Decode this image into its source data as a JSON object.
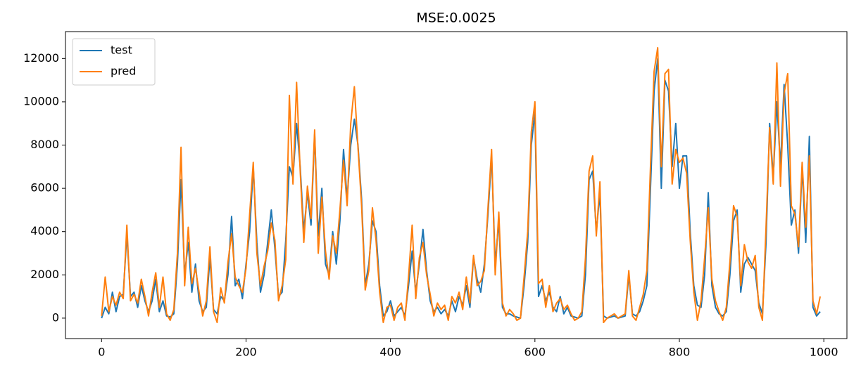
{
  "chart_data": {
    "type": "line",
    "title": "MSE:0.0025",
    "x": [
      0,
      5,
      10,
      15,
      20,
      25,
      30,
      35,
      40,
      45,
      50,
      55,
      60,
      65,
      70,
      75,
      80,
      85,
      90,
      95,
      100,
      105,
      110,
      115,
      120,
      125,
      130,
      135,
      140,
      145,
      150,
      155,
      160,
      165,
      170,
      175,
      180,
      185,
      190,
      195,
      200,
      205,
      210,
      215,
      220,
      225,
      230,
      235,
      240,
      245,
      250,
      255,
      260,
      265,
      270,
      275,
      280,
      285,
      290,
      295,
      300,
      305,
      310,
      315,
      320,
      325,
      330,
      335,
      340,
      345,
      350,
      355,
      360,
      365,
      370,
      375,
      380,
      385,
      390,
      395,
      400,
      405,
      410,
      415,
      420,
      425,
      430,
      435,
      440,
      445,
      450,
      455,
      460,
      465,
      470,
      475,
      480,
      485,
      490,
      495,
      500,
      505,
      510,
      515,
      520,
      525,
      530,
      535,
      540,
      545,
      550,
      555,
      560,
      565,
      570,
      575,
      580,
      585,
      590,
      595,
      600,
      605,
      610,
      615,
      620,
      625,
      630,
      635,
      640,
      645,
      650,
      655,
      660,
      665,
      670,
      675,
      680,
      685,
      690,
      695,
      700,
      705,
      710,
      715,
      720,
      725,
      730,
      735,
      740,
      745,
      750,
      755,
      760,
      765,
      770,
      775,
      780,
      785,
      790,
      795,
      800,
      805,
      810,
      815,
      820,
      825,
      830,
      835,
      840,
      845,
      850,
      855,
      860,
      865,
      870,
      875,
      880,
      885,
      890,
      895,
      900,
      905,
      910,
      915,
      920,
      925,
      930,
      935,
      940,
      945,
      950,
      955,
      960,
      965,
      970,
      975,
      980,
      985,
      990,
      995
    ],
    "series": [
      {
        "name": "test",
        "color": "#1f77b4",
        "values": [
          0,
          500,
          200,
          1200,
          300,
          1000,
          1100,
          3900,
          1000,
          1200,
          500,
          1500,
          800,
          300,
          800,
          1800,
          300,
          800,
          100,
          50,
          200,
          2500,
          6400,
          2000,
          3500,
          1200,
          2500,
          800,
          300,
          500,
          2800,
          400,
          200,
          1000,
          800,
          2000,
          4700,
          1500,
          1800,
          900,
          2500,
          4000,
          7000,
          3500,
          1200,
          2000,
          3500,
          5000,
          3200,
          1000,
          1200,
          3600,
          7000,
          6500,
          9000,
          7000,
          4000,
          5800,
          4300,
          8500,
          3800,
          6000,
          2500,
          2000,
          4000,
          2500,
          4500,
          7800,
          5500,
          8000,
          9200,
          8000,
          5500,
          1500,
          2500,
          4500,
          4000,
          1500,
          100,
          300,
          800,
          100,
          300,
          500,
          100,
          1500,
          3100,
          1200,
          2500,
          4100,
          2200,
          800,
          300,
          500,
          200,
          400,
          100,
          800,
          300,
          1000,
          600,
          1500,
          500,
          2800,
          1800,
          1200,
          2500,
          4800,
          7500,
          2500,
          4500,
          500,
          200,
          200,
          100,
          50,
          0,
          1500,
          3500,
          8000,
          9500,
          1000,
          1500,
          800,
          1200,
          500,
          300,
          1000,
          200,
          500,
          100,
          50,
          0,
          100,
          2000,
          6400,
          6800,
          4000,
          5800,
          100,
          0,
          50,
          100,
          0,
          50,
          100,
          2000,
          200,
          100,
          300,
          800,
          1500,
          6000,
          10500,
          12000,
          6000,
          11000,
          10500,
          7000,
          9000,
          6000,
          7500,
          7500,
          4000,
          1500,
          600,
          500,
          2000,
          5800,
          1500,
          500,
          200,
          100,
          300,
          2000,
          4500,
          5000,
          1200,
          2500,
          2800,
          2500,
          2200,
          700,
          200,
          3500,
          9000,
          6500,
          10000,
          7000,
          10800,
          8000,
          4300,
          5000,
          3000,
          7000,
          3500,
          8400,
          500,
          100,
          300
        ]
      },
      {
        "name": "pred",
        "color": "#ff7f0e",
        "values": [
          100,
          1900,
          300,
          1000,
          600,
          1200,
          900,
          4300,
          800,
          1100,
          700,
          1800,
          1000,
          100,
          1200,
          2100,
          500,
          1900,
          200,
          -100,
          400,
          3000,
          7900,
          1500,
          4200,
          1600,
          2300,
          1200,
          100,
          800,
          3300,
          300,
          -200,
          1400,
          700,
          2600,
          3900,
          1900,
          1500,
          1200,
          2300,
          4800,
          7200,
          3000,
          1500,
          2400,
          3100,
          4400,
          3600,
          800,
          1500,
          2700,
          10300,
          6200,
          10900,
          6800,
          3500,
          6100,
          4600,
          8700,
          3000,
          5600,
          3100,
          1800,
          3800,
          3000,
          5000,
          7300,
          5200,
          9000,
          10700,
          7900,
          5200,
          1300,
          2200,
          5100,
          3600,
          1200,
          -200,
          500,
          600,
          -100,
          500,
          700,
          -100,
          1900,
          4300,
          900,
          2800,
          3500,
          2000,
          1100,
          100,
          700,
          400,
          600,
          -100,
          1000,
          700,
          1200,
          400,
          1900,
          700,
          2900,
          1500,
          1700,
          2200,
          5100,
          7800,
          2000,
          4900,
          700,
          100,
          400,
          200,
          -100,
          0,
          1900,
          4000,
          8600,
          10000,
          1600,
          1800,
          500,
          1500,
          300,
          700,
          900,
          400,
          600,
          200,
          -100,
          0,
          300,
          2800,
          6800,
          7500,
          3800,
          6300,
          -200,
          0,
          100,
          200,
          0,
          100,
          200,
          2200,
          100,
          -100,
          500,
          1100,
          2200,
          7000,
          11400,
          12500,
          7000,
          11300,
          11500,
          6200,
          7800,
          7200,
          7400,
          6700,
          3600,
          1200,
          -100,
          800,
          2800,
          5100,
          1800,
          800,
          300,
          -100,
          500,
          2600,
          5200,
          4700,
          1500,
          3400,
          2600,
          2300,
          2900,
          500,
          -100,
          4200,
          8800,
          6200,
          11800,
          6100,
          10400,
          11300,
          5200,
          4800,
          3300,
          7200,
          4200,
          7500,
          800,
          200,
          1000
        ]
      }
    ],
    "xlim": [
      -50,
      1032
    ],
    "ylim": [
      -945,
      13245
    ],
    "xticks": [
      0,
      200,
      400,
      600,
      800,
      1000
    ],
    "yticks": [
      0,
      2000,
      4000,
      6000,
      8000,
      10000,
      12000
    ],
    "legend": "upper left",
    "grid": false
  }
}
